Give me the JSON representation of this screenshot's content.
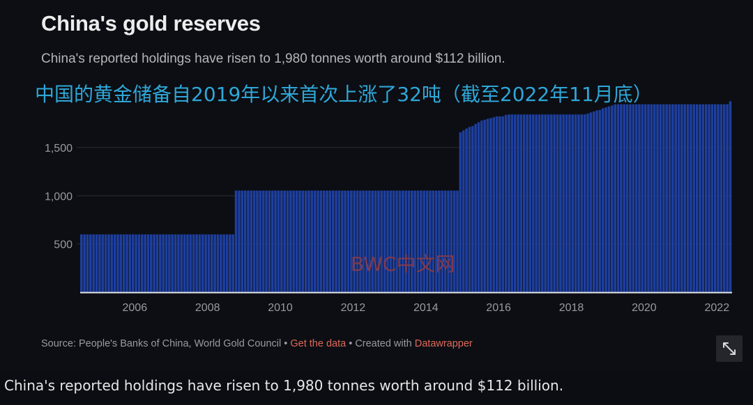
{
  "header": {
    "title": "China's gold reserves",
    "subtitle": "China's reported holdings have risen to 1,980 tonnes worth around $112 billion.",
    "overlay_cn": "中国的黄金储备自2019年以来首次上涨了32吨（截至2022年11月底）"
  },
  "watermark": "BWC中文网",
  "footer": {
    "source_prefix": "Source: People's Banks of China, World Gold Council • ",
    "get_data": "Get the data",
    "created_with": " • Created with ",
    "datawrapper": "Datawrapper"
  },
  "caption": "China's reported holdings have risen to 1,980 tonnes worth around $112 billion.",
  "icons": {
    "expand": "expand-icon"
  },
  "colors": {
    "bar": "#1e3f9e",
    "background": "#0c0e13",
    "link": "#e0695a"
  },
  "chart_data": {
    "type": "bar",
    "title": "China's gold reserves",
    "subtitle": "China's reported holdings have risen to 1,980 tonnes worth around $112 billion.",
    "unit": "tonnes",
    "frequency": "monthly",
    "x_range": [
      "2005-01",
      "2022-11"
    ],
    "x_ticks": [
      "2006",
      "2008",
      "2010",
      "2012",
      "2014",
      "2016",
      "2018",
      "2020",
      "2022"
    ],
    "y_ticks": [
      "500",
      "1,000",
      "1,500"
    ],
    "y_tick_values": [
      500,
      1000,
      1500
    ],
    "ylim": [
      0,
      2000
    ],
    "grid": true,
    "segments": [
      {
        "from": "2005-01",
        "to": "2009-03",
        "value": 600
      },
      {
        "from": "2009-04",
        "to": "2015-05",
        "value": 1054
      },
      {
        "from": "2015-06",
        "to": "2015-06",
        "value": 1658
      },
      {
        "from": "2015-07",
        "to": "2015-07",
        "value": 1677
      },
      {
        "from": "2015-08",
        "to": "2015-08",
        "value": 1697
      },
      {
        "from": "2015-09",
        "to": "2015-09",
        "value": 1713
      },
      {
        "from": "2015-10",
        "to": "2015-10",
        "value": 1722
      },
      {
        "from": "2015-11",
        "to": "2015-11",
        "value": 1743
      },
      {
        "from": "2015-12",
        "to": "2015-12",
        "value": 1762
      },
      {
        "from": "2016-01",
        "to": "2016-01",
        "value": 1779
      },
      {
        "from": "2016-02",
        "to": "2016-02",
        "value": 1788
      },
      {
        "from": "2016-03",
        "to": "2016-03",
        "value": 1798
      },
      {
        "from": "2016-04",
        "to": "2016-04",
        "value": 1805
      },
      {
        "from": "2016-05",
        "to": "2016-05",
        "value": 1814
      },
      {
        "from": "2016-06",
        "to": "2016-06",
        "value": 1823
      },
      {
        "from": "2016-07",
        "to": "2016-07",
        "value": 1823
      },
      {
        "from": "2016-08",
        "to": "2016-08",
        "value": 1823
      },
      {
        "from": "2016-09",
        "to": "2016-09",
        "value": 1838
      },
      {
        "from": "2016-10",
        "to": "2018-11",
        "value": 1843
      },
      {
        "from": "2018-12",
        "to": "2018-12",
        "value": 1852
      },
      {
        "from": "2019-01",
        "to": "2019-01",
        "value": 1864
      },
      {
        "from": "2019-02",
        "to": "2019-02",
        "value": 1874
      },
      {
        "from": "2019-03",
        "to": "2019-03",
        "value": 1885
      },
      {
        "from": "2019-04",
        "to": "2019-04",
        "value": 1890
      },
      {
        "from": "2019-05",
        "to": "2019-05",
        "value": 1906
      },
      {
        "from": "2019-06",
        "to": "2019-06",
        "value": 1916
      },
      {
        "from": "2019-07",
        "to": "2019-07",
        "value": 1926
      },
      {
        "from": "2019-08",
        "to": "2019-08",
        "value": 1936
      },
      {
        "from": "2019-09",
        "to": "2022-10",
        "value": 1948
      },
      {
        "from": "2022-11",
        "to": "2022-11",
        "value": 1980
      }
    ]
  }
}
